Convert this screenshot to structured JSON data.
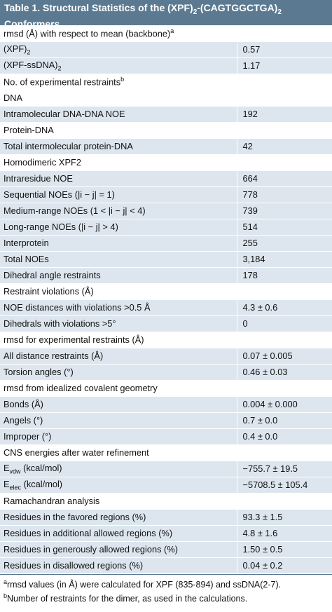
{
  "title": {
    "prefix": "Table 1.  Structural Statistics of the (XPF)",
    "sub1": "2",
    "mid": "-(CAGTGGCTGA)",
    "sub2": "2",
    "line2": "Conformers"
  },
  "rows": [
    {
      "type": "sec",
      "label": "rmsd (Å) with respect to mean (backbone)",
      "sup": "a",
      "value": ""
    },
    {
      "type": "shade",
      "label": "(XPF)",
      "sub": "2",
      "value": "0.57"
    },
    {
      "type": "shade",
      "label": "(XPF-ssDNA)",
      "sub": "2",
      "value": "1.17"
    },
    {
      "type": "sec",
      "label": "No. of experimental restraints",
      "sup": "b",
      "value": ""
    },
    {
      "type": "sec",
      "label": "DNA",
      "value": ""
    },
    {
      "type": "shade",
      "label": "Intramolecular DNA-DNA NOE",
      "value": "192"
    },
    {
      "type": "sec",
      "label": "Protein-DNA",
      "value": ""
    },
    {
      "type": "shade",
      "label": "Total intermolecular protein-DNA",
      "value": "42"
    },
    {
      "type": "sec",
      "label": "Homodimeric XPF2",
      "value": ""
    },
    {
      "type": "shade",
      "label": "Intraresidue NOE",
      "value": "664"
    },
    {
      "type": "shade",
      "label": "Sequential NOEs (|i − j| = 1)",
      "value": "778"
    },
    {
      "type": "shade",
      "label": "Medium-range NOEs (1 < |i − j| < 4)",
      "value": "739"
    },
    {
      "type": "shade",
      "label": "Long-range NOEs (|i − j| > 4)",
      "value": "514"
    },
    {
      "type": "shade",
      "label": "Interprotein",
      "value": "255"
    },
    {
      "type": "shade",
      "label": "Total NOEs",
      "value": "3,184"
    },
    {
      "type": "shade",
      "label": "Dihedral angle restraints",
      "value": "178"
    },
    {
      "type": "sec",
      "label": "Restraint violations (Å)",
      "value": ""
    },
    {
      "type": "shade",
      "label": "NOE distances with violations >0.5 Å",
      "value": "4.3 ± 0.6"
    },
    {
      "type": "shade",
      "label": "Dihedrals with violations >5°",
      "value": "0"
    },
    {
      "type": "sec",
      "label": "rmsd for experimental restraints (Å)",
      "value": ""
    },
    {
      "type": "shade",
      "label": "All distance restraints (Å)",
      "value": "0.07 ± 0.005"
    },
    {
      "type": "shade",
      "label": "Torsion angles (°)",
      "value": "0.46 ± 0.03"
    },
    {
      "type": "sec",
      "label": "rmsd from idealized covalent geometry",
      "value": ""
    },
    {
      "type": "shade",
      "label": "Bonds (Å)",
      "value": "0.004 ± 0.000"
    },
    {
      "type": "shade",
      "label": "Angels (°)",
      "value": "0.7 ± 0.0"
    },
    {
      "type": "shade",
      "label": "Improper (°)",
      "value": "0.4 ± 0.0"
    },
    {
      "type": "sec",
      "label": "CNS energies after water refinement",
      "value": ""
    },
    {
      "type": "shade",
      "label": "E",
      "sub": "vdw",
      "label_after": " (kcal/mol)",
      "value": "−755.7 ± 19.5"
    },
    {
      "type": "shade",
      "label": "E",
      "sub": "elec",
      "label_after": " (kcal/mol)",
      "value": "−5708.5 ± 105.4"
    },
    {
      "type": "sec",
      "label": "Ramachandran analysis",
      "value": ""
    },
    {
      "type": "shade",
      "label": "Residues in the favored regions (%)",
      "value": "93.3 ± 1.5"
    },
    {
      "type": "shade",
      "label": "Residues in additional allowed regions (%)",
      "value": "4.8 ± 1.6"
    },
    {
      "type": "shade",
      "label": "Residues in generously allowed regions (%)",
      "value": "1.50 ± 0.5"
    },
    {
      "type": "shade",
      "label": "Residues in disallowed regions (%)",
      "value": "0.04 ± 0.2"
    }
  ],
  "footnotes": [
    {
      "mark": "a",
      "text": "rmsd values (in Å) were calculated for XPF (835-894) and ssDNA(2-7)."
    },
    {
      "mark": "b",
      "text": "Number of restraints for the dimer, as used in the calculations."
    }
  ],
  "colors": {
    "header": "#5b7a92",
    "shade": "#dde6ee"
  }
}
